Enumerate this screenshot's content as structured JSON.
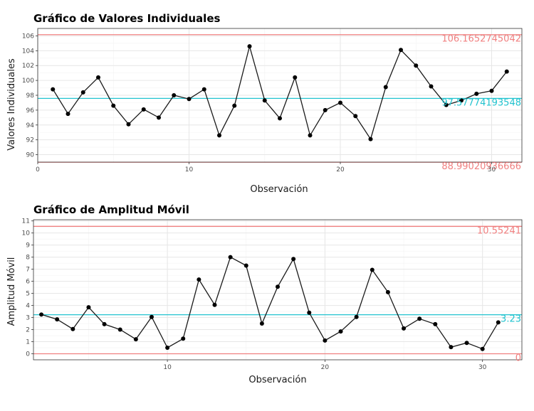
{
  "colors": {
    "limit": "#f08080",
    "center": "#22c3cf",
    "line": "#1a1a1a",
    "grid_major": "#e6e6e6",
    "grid_minor": "#f3f3f3",
    "panel_border": "#333333"
  },
  "chart_data": [
    {
      "type": "line",
      "title": "Gráfico de Valores Individuales",
      "xlabel": "Observación",
      "ylabel": "Valores Individuales",
      "xlim": [
        0,
        32
      ],
      "ylim": [
        89,
        107
      ],
      "x_ticks": [
        "0",
        "10",
        "20",
        "30"
      ],
      "x_tick_values": [
        0,
        10,
        20,
        30
      ],
      "y_ticks": [
        "90",
        "92",
        "94",
        "96",
        "98",
        "100",
        "102",
        "104",
        "106"
      ],
      "y_tick_values": [
        90,
        92,
        94,
        96,
        98,
        100,
        102,
        104,
        106
      ],
      "x": [
        1,
        2,
        3,
        4,
        5,
        6,
        7,
        8,
        9,
        10,
        11,
        12,
        13,
        14,
        15,
        16,
        17,
        18,
        19,
        20,
        21,
        22,
        23,
        24,
        25,
        26,
        27,
        28,
        29,
        30,
        31
      ],
      "values": [
        98.8,
        95.5,
        98.4,
        100.4,
        96.6,
        94.1,
        96.1,
        95.0,
        98.0,
        97.5,
        98.8,
        92.6,
        96.6,
        104.6,
        97.3,
        94.9,
        100.4,
        92.6,
        96.0,
        97.0,
        95.2,
        92.1,
        99.1,
        104.1,
        102.0,
        99.2,
        96.7,
        97.3,
        98.2,
        98.6,
        101.2
      ],
      "limits": [
        {
          "role": "ucl",
          "value": 106.1652745042,
          "label": "106.1652745042"
        },
        {
          "role": "center",
          "value": 97.57774193548,
          "label": "97.57774193548"
        },
        {
          "role": "lcl",
          "value": 88.99020936666,
          "label": "88.99020936666"
        }
      ],
      "grid": true
    },
    {
      "type": "line",
      "title": "Gráfico de Amplitud Móvil",
      "xlabel": "Observación",
      "ylabel": "Amplitud Móvil",
      "xlim": [
        1.5,
        32.5
      ],
      "ylim": [
        -0.5,
        11.1
      ],
      "x_ticks": [
        "10",
        "20",
        "30"
      ],
      "x_tick_values": [
        10,
        20,
        30
      ],
      "y_ticks": [
        "0",
        "1",
        "2",
        "3",
        "4",
        "5",
        "6",
        "7",
        "8",
        "9",
        "10",
        "11"
      ],
      "y_tick_values": [
        0,
        1,
        2,
        3,
        4,
        5,
        6,
        7,
        8,
        9,
        10,
        11
      ],
      "x": [
        2,
        3,
        4,
        5,
        6,
        7,
        8,
        9,
        10,
        11,
        12,
        13,
        14,
        15,
        16,
        17,
        18,
        19,
        20,
        21,
        22,
        23,
        24,
        25,
        26,
        27,
        28,
        29,
        30,
        31
      ],
      "values": [
        3.25,
        2.85,
        2.05,
        3.85,
        2.45,
        2.0,
        1.2,
        3.05,
        0.5,
        1.25,
        6.15,
        4.05,
        8.0,
        7.3,
        2.5,
        5.55,
        7.85,
        3.4,
        1.1,
        1.85,
        3.05,
        6.95,
        5.1,
        2.1,
        2.9,
        2.45,
        0.55,
        0.9,
        0.4,
        2.6
      ],
      "limits": [
        {
          "role": "ucl",
          "value": 10.55241,
          "label": "10.55241"
        },
        {
          "role": "center",
          "value": 3.23,
          "label": "3.23"
        },
        {
          "role": "lcl",
          "value": 0,
          "label": "0"
        }
      ],
      "grid": true
    }
  ]
}
